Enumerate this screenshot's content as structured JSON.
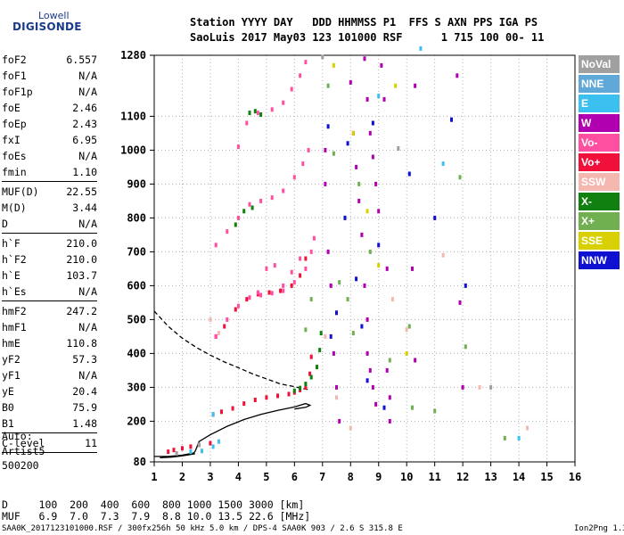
{
  "logo": {
    "line1": "Lowell",
    "line2": "DIGISONDE"
  },
  "header": {
    "row1": "Station YYYY DAY   DDD HHMMSS P1  FFS S AXN PPS IGA PS",
    "row2": "SaoLuis 2017 May03 123 101000 RSF      1 715 100 00- 11"
  },
  "params": [
    {
      "key": "foF2",
      "val": "6.557"
    },
    {
      "key": "foF1",
      "val": "N/A"
    },
    {
      "key": "foF1p",
      "val": "N/A"
    },
    {
      "key": "foE",
      "val": "2.46"
    },
    {
      "key": "foEp",
      "val": "2.43"
    },
    {
      "key": "fxI",
      "val": "6.95"
    },
    {
      "key": "foEs",
      "val": "N/A"
    },
    {
      "key": "fmin",
      "val": "1.10"
    },
    {
      "sep": true
    },
    {
      "key": "MUF(D)",
      "val": "22.55"
    },
    {
      "key": "M(D)",
      "val": "3.44"
    },
    {
      "key": "D",
      "val": "N/A"
    },
    {
      "sep": true
    },
    {
      "key": "h`F",
      "val": "210.0"
    },
    {
      "key": "h`F2",
      "val": "210.0"
    },
    {
      "key": "h`E",
      "val": "103.7"
    },
    {
      "key": "h`Es",
      "val": "N/A"
    },
    {
      "sep": true
    },
    {
      "key": "hmF2",
      "val": "247.2"
    },
    {
      "key": "hmF1",
      "val": "N/A"
    },
    {
      "key": "hmE",
      "val": "110.8"
    },
    {
      "key": "yF2",
      "val": "57.3"
    },
    {
      "key": "yF1",
      "val": "N/A"
    },
    {
      "key": "yE",
      "val": "20.4"
    },
    {
      "key": "B0",
      "val": "75.9"
    },
    {
      "key": "B1",
      "val": "1.48"
    },
    {
      "sep": true
    },
    {
      "key": "C-level",
      "val": "11"
    },
    {
      "sep": true
    }
  ],
  "autoscale": {
    "line1": "Auto:",
    "line2": "Artist5",
    "line3": "500200"
  },
  "legend": [
    {
      "label": "NoVal",
      "color": "#a0a0a0"
    },
    {
      "label": "NNE",
      "color": "#5fa8d8"
    },
    {
      "label": "E",
      "color": "#3cc0f0"
    },
    {
      "label": "W",
      "color": "#b000b0"
    },
    {
      "label": "Vo-",
      "color": "#ff4fa0"
    },
    {
      "label": "Vo+",
      "color": "#f0103a"
    },
    {
      "label": "SSW",
      "color": "#f5b8b0"
    },
    {
      "label": "X-",
      "color": "#108010"
    },
    {
      "label": "X+",
      "color": "#70b050"
    },
    {
      "label": "SSE",
      "color": "#d8d000"
    },
    {
      "label": "NNW",
      "color": "#1010d0"
    }
  ],
  "dmuf": {
    "d_row": "D     100  200  400  600  800 1000 1500 3000 [km]",
    "muf_row": "MUF   6.9  7.0  7.3  7.9  8.8 10.0 13.5 22.6 [MHz]"
  },
  "footer": "SAA0K_2017123101000.RSF / 300fx256h 50 kHz 5.0 km / DPS-4 SAA0K 903 / 2.6 S 315.8 E",
  "version": "Ion2Png 1.3.17",
  "chart_data": {
    "type": "scatter",
    "x_ticks": [
      1,
      2,
      3,
      4,
      5,
      6,
      7,
      8,
      9,
      10,
      11,
      12,
      13,
      14,
      15,
      16
    ],
    "y_ticks": [
      80,
      200,
      300,
      400,
      500,
      600,
      700,
      800,
      900,
      1000,
      1100,
      1280
    ],
    "xlim": [
      1,
      16
    ],
    "ylim": [
      80,
      1280
    ],
    "grid": "dotted vertical and horizontal at ticks",
    "series": [
      {
        "color": "#f0103a",
        "points": [
          [
            1.5,
            110
          ],
          [
            1.7,
            115
          ],
          [
            2.0,
            120
          ],
          [
            2.3,
            125
          ],
          [
            2.6,
            130
          ],
          [
            3.0,
            135
          ],
          [
            3.1,
            220
          ],
          [
            3.4,
            228
          ],
          [
            3.8,
            238
          ],
          [
            4.2,
            252
          ],
          [
            4.6,
            263
          ],
          [
            5.0,
            270
          ],
          [
            5.4,
            275
          ],
          [
            5.8,
            280
          ],
          [
            6.0,
            285
          ],
          [
            6.2,
            292
          ],
          [
            6.4,
            300
          ],
          [
            6.55,
            340
          ],
          [
            6.6,
            390
          ],
          [
            3.2,
            450
          ],
          [
            3.5,
            480
          ],
          [
            3.9,
            530
          ],
          [
            4.3,
            560
          ],
          [
            4.7,
            575
          ],
          [
            5.1,
            580
          ],
          [
            5.5,
            585
          ],
          [
            5.9,
            600
          ],
          [
            6.2,
            630
          ],
          [
            6.4,
            680
          ]
        ]
      },
      {
        "color": "#108010",
        "points": [
          [
            6.0,
            290
          ],
          [
            6.2,
            298
          ],
          [
            6.4,
            310
          ],
          [
            6.6,
            330
          ],
          [
            6.8,
            360
          ],
          [
            6.9,
            410
          ],
          [
            6.95,
            460
          ],
          [
            4.4,
            1110
          ],
          [
            4.6,
            1115
          ],
          [
            4.8,
            1105
          ],
          [
            3.9,
            780
          ],
          [
            4.2,
            820
          ],
          [
            4.5,
            830
          ]
        ]
      },
      {
        "color": "#ff4fa0",
        "points": [
          [
            3.2,
            450
          ],
          [
            3.6,
            500
          ],
          [
            4.0,
            540
          ],
          [
            4.4,
            565
          ],
          [
            4.8,
            572
          ],
          [
            5.2,
            578
          ],
          [
            5.6,
            585
          ],
          [
            6.0,
            610
          ],
          [
            6.4,
            650
          ],
          [
            6.6,
            700
          ],
          [
            6.7,
            740
          ],
          [
            3.2,
            720
          ],
          [
            3.6,
            760
          ],
          [
            4.0,
            800
          ],
          [
            4.4,
            840
          ],
          [
            4.8,
            850
          ],
          [
            5.2,
            860
          ],
          [
            5.6,
            880
          ],
          [
            6.0,
            920
          ],
          [
            6.3,
            960
          ],
          [
            6.5,
            1000
          ],
          [
            4.0,
            1010
          ],
          [
            4.3,
            1080
          ],
          [
            4.7,
            1110
          ],
          [
            5.2,
            1120
          ],
          [
            5.6,
            1140
          ],
          [
            5.9,
            1180
          ],
          [
            6.2,
            1220
          ],
          [
            6.4,
            1260
          ],
          [
            4.7,
            580
          ],
          [
            5.0,
            650
          ],
          [
            5.3,
            660
          ],
          [
            5.6,
            600
          ],
          [
            5.9,
            640
          ],
          [
            6.2,
            680
          ]
        ]
      },
      {
        "color": "#b000b0",
        "points": [
          [
            7.1,
            1000
          ],
          [
            7.1,
            900
          ],
          [
            7.2,
            700
          ],
          [
            7.3,
            600
          ],
          [
            7.4,
            400
          ],
          [
            7.5,
            300
          ],
          [
            7.6,
            200
          ],
          [
            8.0,
            1200
          ],
          [
            8.1,
            1050
          ],
          [
            8.2,
            950
          ],
          [
            8.3,
            850
          ],
          [
            8.4,
            750
          ],
          [
            8.5,
            600
          ],
          [
            8.6,
            500
          ],
          [
            8.6,
            400
          ],
          [
            8.7,
            350
          ],
          [
            8.8,
            300
          ],
          [
            8.9,
            250
          ],
          [
            8.5,
            1270
          ],
          [
            8.6,
            1150
          ],
          [
            8.7,
            1050
          ],
          [
            8.8,
            980
          ],
          [
            8.9,
            900
          ],
          [
            9.0,
            820
          ],
          [
            9.1,
            1250
          ],
          [
            9.2,
            1150
          ],
          [
            9.3,
            650
          ],
          [
            9.3,
            350
          ],
          [
            9.4,
            270
          ],
          [
            9.4,
            200
          ],
          [
            10.3,
            1190
          ],
          [
            10.2,
            650
          ],
          [
            10.3,
            380
          ],
          [
            11.8,
            1220
          ],
          [
            11.9,
            550
          ],
          [
            12.0,
            300
          ]
        ]
      },
      {
        "color": "#1010d0",
        "points": [
          [
            7.2,
            1070
          ],
          [
            7.3,
            450
          ],
          [
            7.5,
            520
          ],
          [
            7.8,
            800
          ],
          [
            7.9,
            1020
          ],
          [
            8.2,
            620
          ],
          [
            8.4,
            480
          ],
          [
            8.6,
            320
          ],
          [
            8.8,
            1080
          ],
          [
            9.0,
            720
          ],
          [
            9.2,
            240
          ],
          [
            10.1,
            930
          ],
          [
            11.0,
            800
          ],
          [
            11.6,
            1090
          ],
          [
            12.1,
            600
          ]
        ]
      },
      {
        "color": "#70b050",
        "points": [
          [
            6.4,
            470
          ],
          [
            6.6,
            560
          ],
          [
            7.2,
            1190
          ],
          [
            7.4,
            990
          ],
          [
            7.6,
            610
          ],
          [
            7.9,
            560
          ],
          [
            8.1,
            460
          ],
          [
            8.3,
            900
          ],
          [
            8.7,
            700
          ],
          [
            9.4,
            380
          ],
          [
            10.1,
            480
          ],
          [
            10.2,
            240
          ],
          [
            11.0,
            230
          ],
          [
            11.9,
            920
          ],
          [
            12.1,
            420
          ],
          [
            13.5,
            150
          ]
        ]
      },
      {
        "color": "#3cc0f0",
        "points": [
          [
            2.3,
            110
          ],
          [
            2.7,
            112
          ],
          [
            3.1,
            125
          ],
          [
            3.3,
            140
          ],
          [
            3.1,
            220
          ],
          [
            9.0,
            1160
          ],
          [
            10.5,
            1300
          ],
          [
            11.3,
            960
          ],
          [
            14.0,
            150
          ]
        ]
      },
      {
        "color": "#f5b8b0",
        "points": [
          [
            3.0,
            500
          ],
          [
            3.3,
            460
          ],
          [
            7.1,
            450
          ],
          [
            7.5,
            270
          ],
          [
            8.0,
            180
          ],
          [
            9.5,
            560
          ],
          [
            10.0,
            470
          ],
          [
            11.3,
            690
          ],
          [
            12.6,
            300
          ],
          [
            14.3,
            180
          ]
        ]
      },
      {
        "color": "#d8d000",
        "points": [
          [
            7.4,
            1250
          ],
          [
            8.1,
            1050
          ],
          [
            8.6,
            820
          ],
          [
            9.0,
            660
          ],
          [
            9.6,
            1190
          ],
          [
            10.0,
            400
          ]
        ]
      },
      {
        "color": "#a0a0a0",
        "points": [
          [
            1.8,
            105
          ],
          [
            2.6,
            130
          ],
          [
            7.0,
            1275
          ],
          [
            9.7,
            1005
          ],
          [
            13.0,
            300
          ]
        ]
      }
    ],
    "curves": [
      {
        "style": "solid",
        "color": "#000000",
        "points": [
          [
            1.0,
            96
          ],
          [
            1.5,
            96
          ],
          [
            2.0,
            100
          ],
          [
            2.4,
            106
          ],
          [
            2.46,
            111
          ],
          [
            2.6,
            140
          ],
          [
            3.0,
            160
          ],
          [
            3.6,
            185
          ],
          [
            4.2,
            205
          ],
          [
            4.8,
            220
          ],
          [
            5.4,
            232
          ],
          [
            6.0,
            242
          ],
          [
            6.4,
            252
          ],
          [
            6.556,
            247
          ],
          [
            6.4,
            241
          ],
          [
            6.0,
            236
          ]
        ]
      },
      {
        "style": "solid",
        "color": "#000000",
        "points": [
          [
            1.2,
            92
          ],
          [
            1.6,
            94
          ],
          [
            2.0,
            98
          ],
          [
            2.46,
            104
          ]
        ]
      },
      {
        "style": "dashed",
        "color": "#000000",
        "points": [
          [
            1.0,
            525
          ],
          [
            1.5,
            480
          ],
          [
            2.0,
            445
          ],
          [
            2.5,
            418
          ],
          [
            3.0,
            395
          ],
          [
            3.5,
            375
          ],
          [
            4.0,
            358
          ],
          [
            4.5,
            340
          ],
          [
            5.0,
            325
          ],
          [
            5.5,
            310
          ],
          [
            6.0,
            302
          ],
          [
            6.3,
            296
          ],
          [
            6.55,
            293
          ]
        ]
      }
    ]
  }
}
